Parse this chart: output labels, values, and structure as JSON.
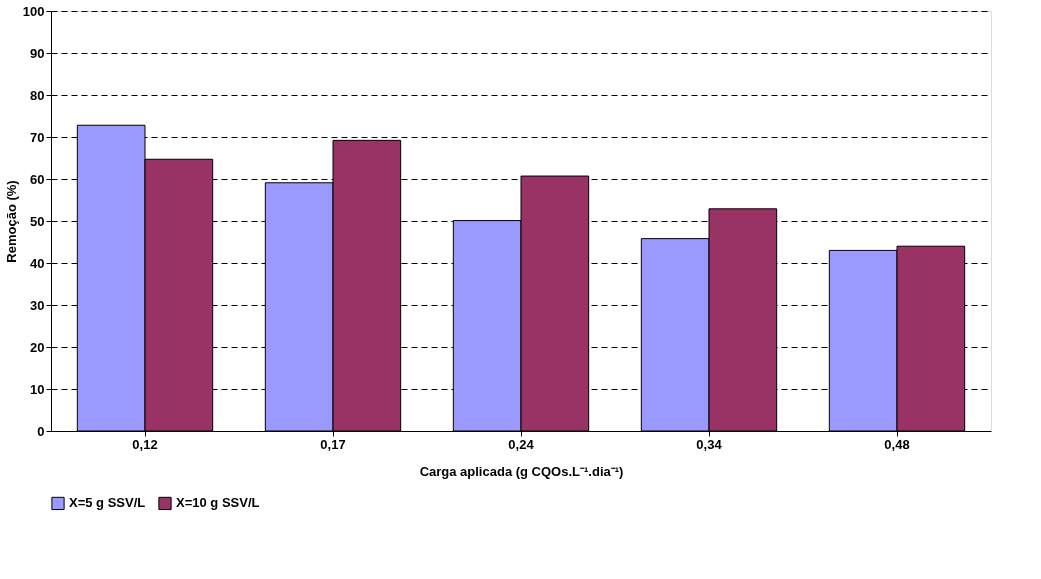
{
  "chart_data": {
    "type": "bar",
    "xlabel": "Carga aplicada (g CQOs.L⁻¹.dia⁻¹)",
    "ylabel": "Remoção (%)",
    "categories": [
      "0,12",
      "0,17",
      "0,24",
      "0,34",
      "0,48"
    ],
    "series": [
      {
        "name": "X=5 g SSV/L",
        "color": "#9999ff",
        "values": [
          72.8,
          59.1,
          50.1,
          45.8,
          43.0
        ]
      },
      {
        "name": "X=10 g SSV/L",
        "color": "#993366",
        "values": [
          64.7,
          69.2,
          60.7,
          52.9,
          44.0
        ]
      }
    ],
    "ylim": [
      0,
      100
    ],
    "yticks": [
      0,
      10,
      20,
      30,
      40,
      50,
      60,
      70,
      80,
      90,
      100
    ],
    "grid": "y",
    "legend": "bottom"
  }
}
